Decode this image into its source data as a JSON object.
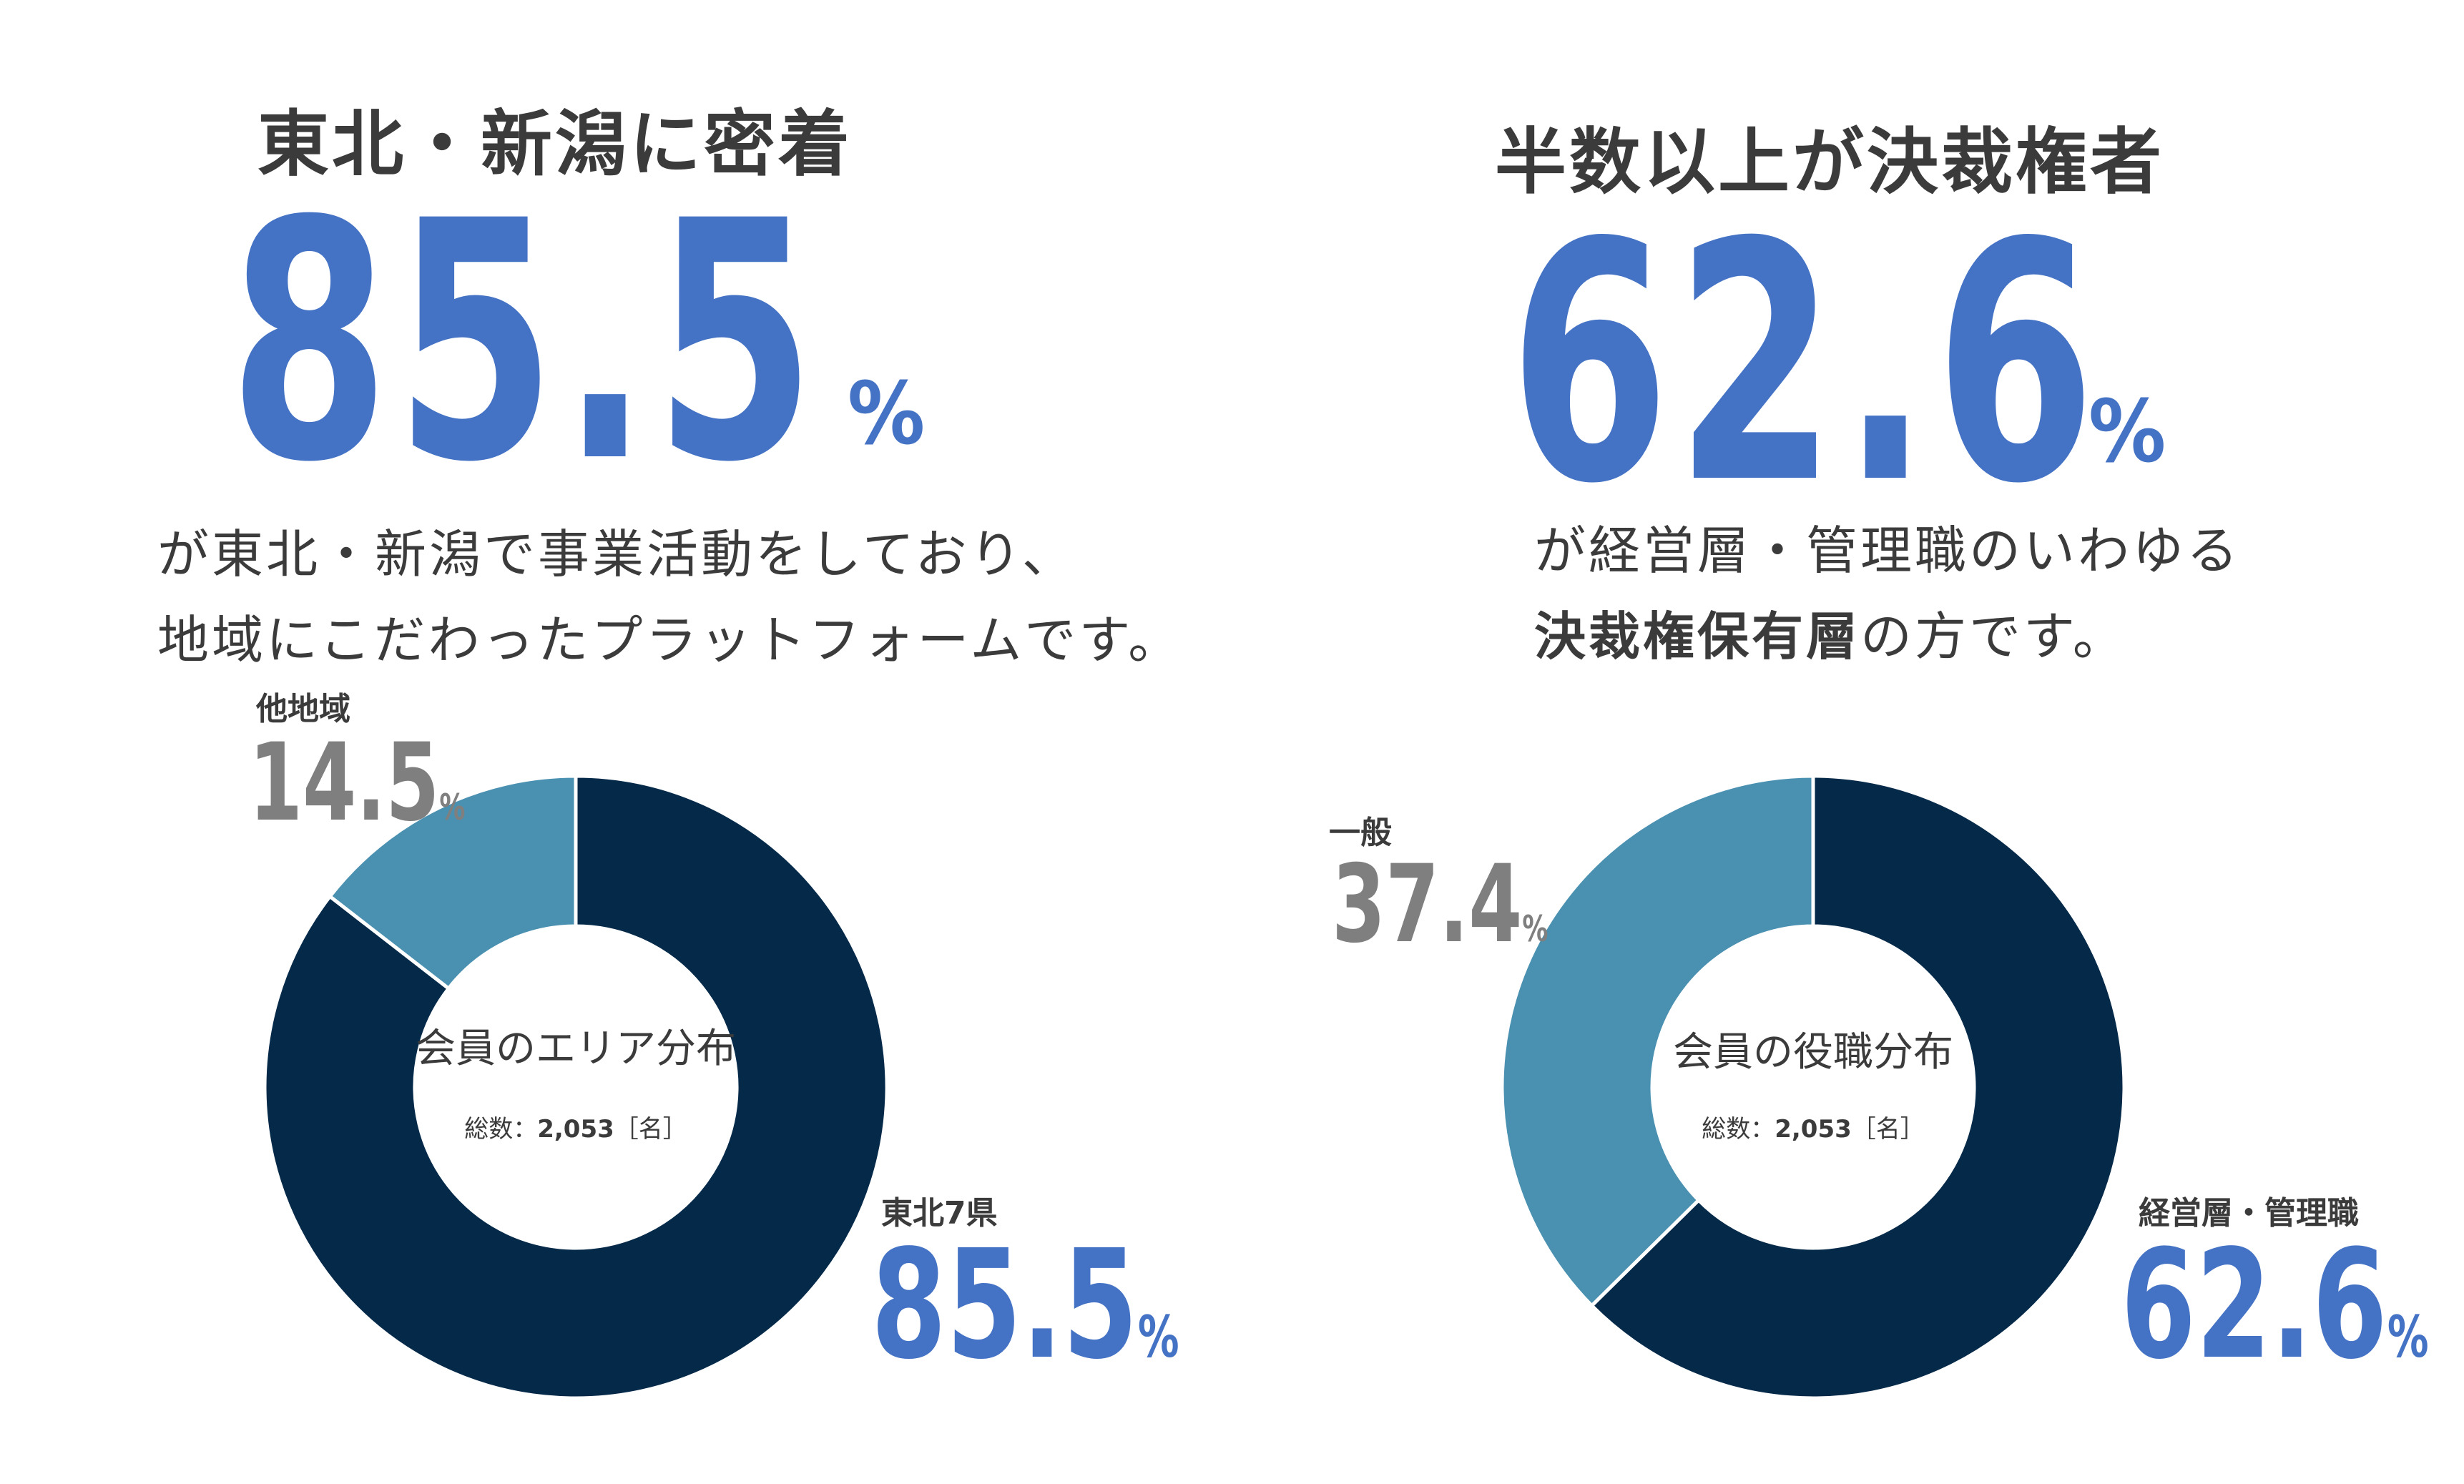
{
  "left": {
    "heading": "東北・新潟に密着",
    "hero_value": "85.5",
    "hero_unit": "%",
    "desc_line1": "が東北・新潟で事業活動をしており、",
    "desc_line2": "地域にこだわったプラットフォームです。",
    "center_title": "会員のエリア分布",
    "center_sub_label": "総数：",
    "center_sub_value": "2,053",
    "center_sub_unit": "［名］"
  },
  "right": {
    "heading": "半数以上が決裁権者",
    "hero_value": "62.6",
    "hero_unit": "%",
    "desc_line1": "が経営層・管理職のいわゆる",
    "desc_line2_bold": "決裁権保有層",
    "desc_line2_rest": "の方です。",
    "center_title": "会員の役職分布",
    "center_sub_label": "総数：",
    "center_sub_value": "2,053",
    "center_sub_unit": "［名］"
  },
  "colors": {
    "accent_blue": "#4472c4",
    "dark_navy": "#052949",
    "teal": "#4a90b0",
    "gray_text": "#7f7f7f",
    "heading_text": "#3b3b3b"
  },
  "chart_data": [
    {
      "type": "pie",
      "donut": true,
      "title": "会員のエリア分布",
      "subtitle": "総数：2,053［名］",
      "total": 2053,
      "slices": [
        {
          "label": "東北7県",
          "value": 85.5,
          "unit": "%",
          "color": "#052949"
        },
        {
          "label": "他地域",
          "value": 14.5,
          "unit": "%",
          "color": "#4a90b0"
        }
      ]
    },
    {
      "type": "pie",
      "donut": true,
      "title": "会員の役職分布",
      "subtitle": "総数：2,053［名］",
      "total": 2053,
      "slices": [
        {
          "label": "経営層・管理職",
          "value": 62.6,
          "unit": "%",
          "color": "#052949"
        },
        {
          "label": "一般",
          "value": 37.4,
          "unit": "%",
          "color": "#4a90b0"
        }
      ]
    }
  ]
}
